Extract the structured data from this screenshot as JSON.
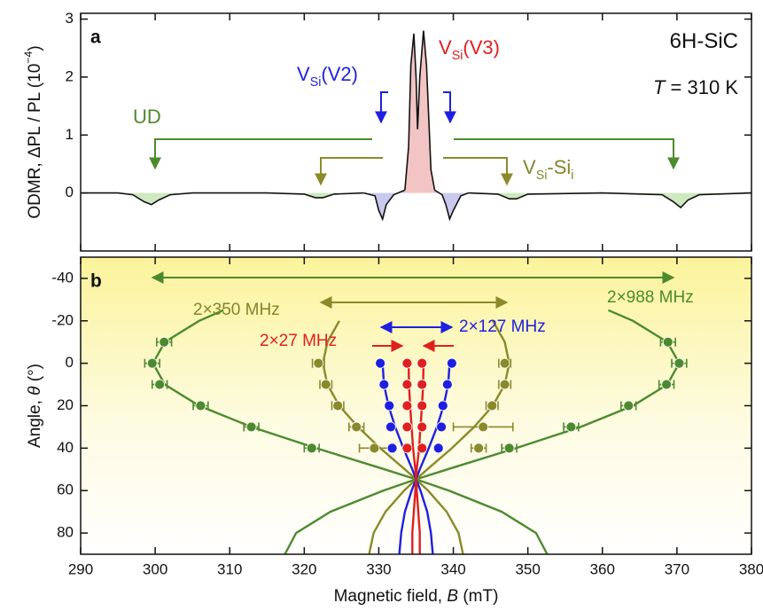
{
  "chart_data": [
    {
      "type": "line",
      "panel_label": "a",
      "y_label": [
        {
          "text": "ODMR, ΔPL / PL (10"
        },
        {
          "text": "−4",
          "style": "sup"
        },
        {
          "text": ")"
        }
      ],
      "xlim": [
        290,
        380
      ],
      "xticks": [
        290,
        300,
        310,
        320,
        330,
        340,
        350,
        360,
        370,
        380
      ],
      "ylim": [
        -1,
        3.1
      ],
      "yticks": [
        0,
        1,
        2,
        3
      ],
      "line_color": "#111111",
      "series": [
        {
          "fill": "#cfe8bf",
          "x": [
            290,
            295,
            297,
            298.5,
            299.5,
            300.5,
            302,
            305,
            315,
            320,
            321.5,
            322.5,
            324,
            328
          ],
          "values": [
            0,
            0,
            -0.03,
            -0.15,
            -0.2,
            -0.12,
            -0.03,
            0,
            0,
            -0.02,
            -0.08,
            -0.08,
            -0.02,
            0
          ]
        },
        {
          "fill": "#c9c9ee",
          "x": [
            328,
            329.5,
            330,
            330.5,
            331,
            332,
            333.5
          ],
          "values": [
            0,
            -0.05,
            -0.3,
            -0.45,
            -0.2,
            -0.03,
            0.05
          ]
        },
        {
          "fill": "#f3c4c4",
          "x": [
            333.5,
            334,
            334.3,
            334.7,
            335,
            335.2,
            335.5,
            336,
            336.4,
            337,
            337.5
          ],
          "values": [
            0.05,
            0.8,
            2.2,
            2.75,
            2.0,
            1.1,
            2.0,
            2.8,
            2.2,
            0.4,
            0.05
          ]
        },
        {
          "fill": "#c9c9ee",
          "x": [
            337.5,
            338.5,
            339,
            339.5,
            340,
            341,
            342
          ],
          "values": [
            0.05,
            -0.03,
            -0.2,
            -0.45,
            -0.3,
            -0.05,
            0
          ]
        },
        {
          "fill": "#cfe8bf",
          "x": [
            342,
            346,
            347.5,
            348.5,
            350,
            360,
            368,
            369.5,
            370.5,
            371.5,
            373,
            380
          ],
          "values": [
            0,
            -0.02,
            -0.1,
            -0.1,
            -0.02,
            0,
            -0.03,
            -0.15,
            -0.25,
            -0.12,
            -0.03,
            0
          ]
        }
      ],
      "annotations": [
        {
          "color": "#111111",
          "parts": [
            {
              "text": "6H-SiC"
            }
          ]
        },
        {
          "color": "#111111",
          "parts": [
            {
              "text": "T",
              "style": "italic"
            },
            {
              "text": " = 310 K"
            }
          ]
        },
        {
          "color": "#4d8a2f",
          "parts": [
            {
              "text": "UD"
            }
          ]
        },
        {
          "color": "#1f1fe0",
          "parts": [
            {
              "text": "V"
            },
            {
              "text": "Si",
              "style": "sub"
            },
            {
              "text": "(V2)"
            }
          ]
        },
        {
          "color": "#e01f1f",
          "parts": [
            {
              "text": "V"
            },
            {
              "text": "Si",
              "style": "sub"
            },
            {
              "text": "(V3)"
            }
          ]
        },
        {
          "color": "#85852a",
          "parts": [
            {
              "text": "V"
            },
            {
              "text": "Si",
              "style": "sub"
            },
            {
              "text": "-Si"
            },
            {
              "text": "i",
              "style": "sub"
            }
          ]
        }
      ]
    },
    {
      "type": "scatter",
      "panel_label": "b",
      "x_label": [
        {
          "text": "Magnetic field, "
        },
        {
          "text": "B",
          "style": "italic"
        },
        {
          "text": " (mT)"
        }
      ],
      "y_label": [
        {
          "text": "Angle, "
        },
        {
          "text": "θ",
          "style": "italic"
        },
        {
          "text": " (°)"
        }
      ],
      "xlim": [
        290,
        380
      ],
      "xticks": [
        290,
        300,
        310,
        320,
        330,
        340,
        350,
        360,
        370,
        380
      ],
      "ylim": [
        90,
        -50
      ],
      "yticks": [
        -40,
        -20,
        0,
        20,
        40,
        60,
        80
      ],
      "series": [
        {
          "color": "#4d8a2f",
          "x": [
            301.2,
            299.6,
            300.6,
            306.1,
            312.9,
            321.0
          ],
          "y": [
            -10,
            0,
            10,
            20,
            30,
            40
          ],
          "errors": [
            1,
            1,
            1,
            1,
            1,
            1
          ]
        },
        {
          "color": "#4d8a2f",
          "x": [
            368.8,
            370.3,
            368.6,
            363.5,
            355.8,
            347.5
          ],
          "y": [
            -10,
            0,
            10,
            20,
            30,
            40
          ],
          "errors": [
            1,
            1,
            1,
            1,
            1,
            1
          ]
        },
        {
          "color": "#8a8a2a",
          "x": [
            321.9,
            322.9,
            324.5,
            327.0,
            329.4
          ],
          "y": [
            0,
            10,
            20,
            30,
            40
          ],
          "errors": [
            0.8,
            0.8,
            0.8,
            1,
            2
          ]
        },
        {
          "color": "#8a8a2a",
          "x": [
            346.9,
            346.9,
            345.2,
            344.0,
            343.4
          ],
          "y": [
            0,
            10,
            20,
            30,
            40
          ],
          "errors": [
            0.8,
            0.8,
            0.8,
            4,
            1
          ]
        },
        {
          "color": "#1f1fe0",
          "x": [
            330.2,
            330.7,
            331.4,
            331.6,
            331.8
          ],
          "y": [
            0,
            10,
            20,
            30,
            40
          ],
          "errors": [
            0,
            0,
            0,
            0,
            0
          ]
        },
        {
          "color": "#1f1fe0",
          "x": [
            339.8,
            339.2,
            338.6,
            338.4,
            338.0
          ],
          "y": [
            0,
            10,
            20,
            30,
            40
          ],
          "errors": [
            0,
            0,
            0,
            0,
            0
          ]
        },
        {
          "color": "#e01f1f",
          "x": [
            333.8,
            333.8,
            333.8,
            333.8,
            333.8
          ],
          "y": [
            0,
            10,
            20,
            30,
            40
          ],
          "errors": [
            0,
            0,
            0,
            0,
            0
          ]
        },
        {
          "color": "#e01f1f",
          "x": [
            335.8,
            335.8,
            335.8,
            335.8,
            335.8
          ],
          "y": [
            0,
            10,
            20,
            30,
            40
          ],
          "errors": [
            0,
            0,
            0,
            0,
            0
          ]
        }
      ],
      "curves": [
        {
          "color": "#4d8a2f",
          "x": [
            309.15,
            305.9,
            301.3,
            299.7,
            301.3,
            305.9,
            312.9,
            321.6,
            330.8,
            335,
            339.4,
            346.5,
            351.1,
            352.6
          ],
          "y": [
            -25,
            -20,
            -10,
            0,
            10,
            20,
            30,
            40,
            50,
            54.7,
            60,
            70,
            80,
            90
          ]
        },
        {
          "color": "#4d8a2f",
          "x": [
            360.8,
            364.1,
            368.7,
            370.3,
            368.7,
            364.1,
            357.1,
            348.4,
            339.2,
            335,
            330.6,
            323.5,
            318.9,
            317.4
          ],
          "y": [
            -25,
            -20,
            -10,
            0,
            10,
            20,
            30,
            40,
            50,
            54.7,
            60,
            70,
            80,
            90
          ]
        },
        {
          "color": "#8a8a2a",
          "x": [
            324.7,
            323.1,
            322.5,
            323.1,
            324.7,
            327.2,
            330.2,
            333.5,
            335,
            336.6,
            339.1,
            340.7,
            341.3
          ],
          "y": [
            -20,
            -10,
            0,
            10,
            20,
            30,
            40,
            50,
            54.7,
            60,
            70,
            80,
            90
          ]
        },
        {
          "color": "#8a8a2a",
          "x": [
            345.3,
            346.9,
            347.5,
            346.9,
            345.3,
            342.8,
            339.8,
            336.5,
            335,
            333.4,
            330.9,
            329.3,
            328.7
          ],
          "y": [
            -20,
            -10,
            0,
            10,
            20,
            30,
            40,
            50,
            54.7,
            60,
            70,
            80,
            90
          ]
        },
        {
          "color": "#1f1fe0",
          "x": [
            330.5,
            330.7,
            331.3,
            332.2,
            333.3,
            334.5,
            335,
            335.6,
            336.5,
            337.0,
            337.25
          ],
          "y": [
            0,
            10,
            20,
            30,
            40,
            50,
            54.7,
            60,
            70,
            80,
            90
          ]
        },
        {
          "color": "#1f1fe0",
          "x": [
            339.5,
            339.3,
            338.7,
            337.8,
            336.7,
            335.5,
            335,
            334.4,
            333.5,
            333.0,
            332.75
          ],
          "y": [
            0,
            10,
            20,
            30,
            40,
            50,
            54.7,
            60,
            70,
            80,
            90
          ]
        },
        {
          "color": "#e01f1f",
          "x": [
            334,
            334.05,
            334.2,
            334.4,
            334.6,
            334.9,
            335,
            335.1,
            335.3,
            335.5,
            335.5
          ],
          "y": [
            0,
            10,
            20,
            30,
            40,
            50,
            54.7,
            60,
            70,
            80,
            90
          ]
        },
        {
          "color": "#e01f1f",
          "x": [
            336,
            335.95,
            335.8,
            335.6,
            335.4,
            335.1,
            335,
            334.9,
            334.7,
            334.5,
            334.5
          ],
          "y": [
            0,
            10,
            20,
            30,
            40,
            50,
            54.7,
            60,
            70,
            80,
            90
          ]
        }
      ],
      "annotations": [
        {
          "color": "#4d8a2f",
          "parts": [
            {
              "text": "2×988 MHz"
            }
          ]
        },
        {
          "color": "#85852a",
          "parts": [
            {
              "text": "2×350 MHz"
            }
          ]
        },
        {
          "color": "#1f1fe0",
          "parts": [
            {
              "text": "2×127 MHz"
            }
          ]
        },
        {
          "color": "#e01f1f",
          "parts": [
            {
              "text": "2×27 MHz"
            }
          ]
        }
      ]
    }
  ]
}
